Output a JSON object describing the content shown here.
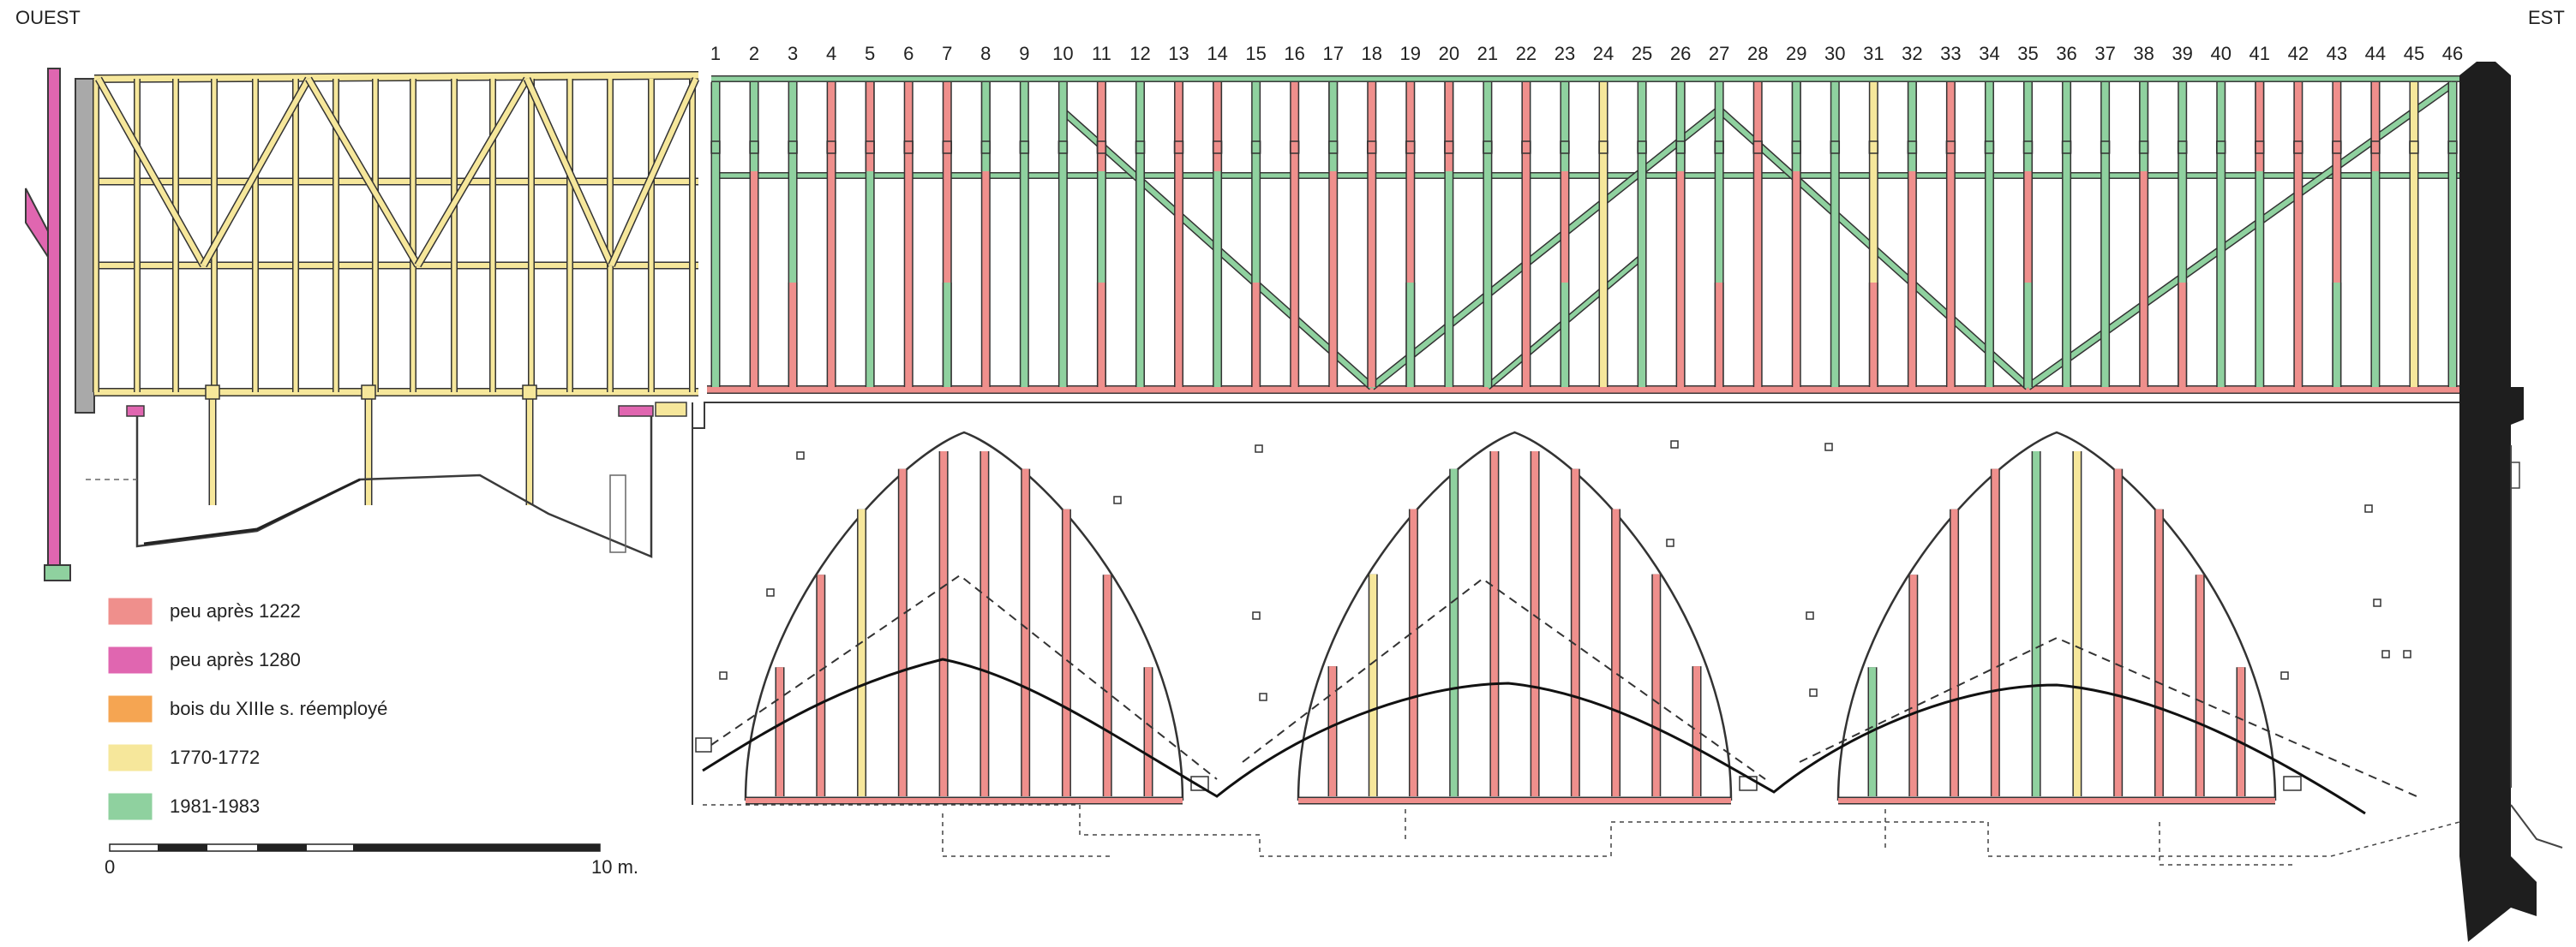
{
  "orientation": {
    "west": "OUEST",
    "east": "EST"
  },
  "truss_numbers": [
    "1",
    "2",
    "3",
    "4",
    "5",
    "6",
    "7",
    "8",
    "9",
    "10",
    "11",
    "12",
    "13",
    "14",
    "15",
    "16",
    "17",
    "18",
    "19",
    "20",
    "21",
    "22",
    "23",
    "24",
    "25",
    "26",
    "27",
    "28",
    "29",
    "30",
    "31",
    "32",
    "33",
    "34",
    "35",
    "36",
    "37",
    "38",
    "39",
    "40",
    "41",
    "42",
    "43",
    "44",
    "45",
    "46"
  ],
  "legend": [
    {
      "label": "peu après 1222",
      "color": "#ef8f8c"
    },
    {
      "label": "peu après 1280",
      "color": "#e066b0"
    },
    {
      "label": "bois du XIIIe s. réemployé",
      "color": "#f5a552"
    },
    {
      "label": "1770-1772",
      "color": "#f6e79b"
    },
    {
      "label": "1981-1983",
      "color": "#8fd19f"
    }
  ],
  "scale": {
    "start": "0",
    "end": "10 m."
  },
  "colors": {
    "outline": "#3a3a3a",
    "wall": "#222222",
    "grey_post": "#a9a9a9"
  },
  "truss_periods": [
    "green",
    "red",
    "green",
    "red",
    "green",
    "red",
    "red",
    "red",
    "green",
    "green",
    "green",
    "green",
    "red",
    "green",
    "green",
    "red",
    "red",
    "red",
    "red",
    "green",
    "green",
    "red",
    "red",
    "yellow",
    "green",
    "red",
    "green",
    "red",
    "red",
    "green",
    "yellow",
    "red",
    "red",
    "green",
    "red",
    "green",
    "green",
    "red",
    "green",
    "green",
    "green",
    "red",
    "red",
    "green",
    "yellow",
    "green"
  ],
  "vault_ribs": [
    [
      "red",
      "red",
      "yellow",
      "red",
      "red",
      "red",
      "red",
      "red",
      "red",
      "red"
    ],
    [
      "red",
      "yellow",
      "red",
      "green",
      "red",
      "red",
      "red",
      "red",
      "red",
      "red"
    ],
    [
      "green",
      "red",
      "red",
      "red",
      "green",
      "yellow",
      "red",
      "red",
      "red",
      "red"
    ]
  ]
}
